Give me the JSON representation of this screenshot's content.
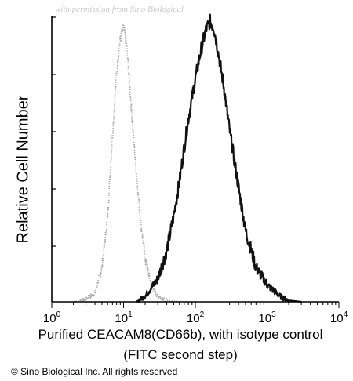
{
  "watermark": "with permission from Sino Biological",
  "copyright": "© Sino Biological Inc. All rights reserved",
  "colors": {
    "isotype": "#a8a8a8",
    "antibody": "#111111",
    "axis": "#000000"
  },
  "chart_data": {
    "type": "line",
    "title": "",
    "xlabel": "Purified CEACAM8(CD66b), with isotype control",
    "xlabel_line2": "(FITC second step)",
    "ylabel": "Relative Cell Number",
    "xscale": "log",
    "xlim": [
      1,
      10000
    ],
    "ylim": [
      0,
      100
    ],
    "grid": false,
    "legend": "none",
    "x_ticks": [
      {
        "base": "10",
        "exp": "0",
        "value": 1
      },
      {
        "base": "10",
        "exp": "1",
        "value": 10
      },
      {
        "base": "10",
        "exp": "2",
        "value": 100
      },
      {
        "base": "10",
        "exp": "3",
        "value": 1000
      },
      {
        "base": "10",
        "exp": "4",
        "value": 10000
      }
    ],
    "series": [
      {
        "style": "dotted",
        "points": [
          [
            2,
            0
          ],
          [
            3,
            1
          ],
          [
            4,
            3
          ],
          [
            5,
            12
          ],
          [
            6,
            30
          ],
          [
            7,
            58
          ],
          [
            8,
            80
          ],
          [
            9,
            92
          ],
          [
            10,
            96
          ],
          [
            11,
            90
          ],
          [
            12,
            78
          ],
          [
            14,
            55
          ],
          [
            17,
            30
          ],
          [
            20,
            15
          ],
          [
            25,
            5
          ],
          [
            30,
            2
          ],
          [
            40,
            0.5
          ],
          [
            60,
            0
          ]
        ]
      },
      {
        "style": "solid",
        "points": [
          [
            15,
            0
          ],
          [
            20,
            2
          ],
          [
            30,
            8
          ],
          [
            40,
            18
          ],
          [
            50,
            30
          ],
          [
            60,
            42
          ],
          [
            70,
            54
          ],
          [
            80,
            64
          ],
          [
            100,
            78
          ],
          [
            120,
            88
          ],
          [
            140,
            95
          ],
          [
            160,
            98
          ],
          [
            180,
            96
          ],
          [
            200,
            90
          ],
          [
            250,
            75
          ],
          [
            300,
            60
          ],
          [
            400,
            40
          ],
          [
            500,
            25
          ],
          [
            700,
            12
          ],
          [
            1000,
            6
          ],
          [
            1500,
            2
          ],
          [
            2000,
            0.5
          ],
          [
            3000,
            0
          ]
        ]
      }
    ]
  }
}
